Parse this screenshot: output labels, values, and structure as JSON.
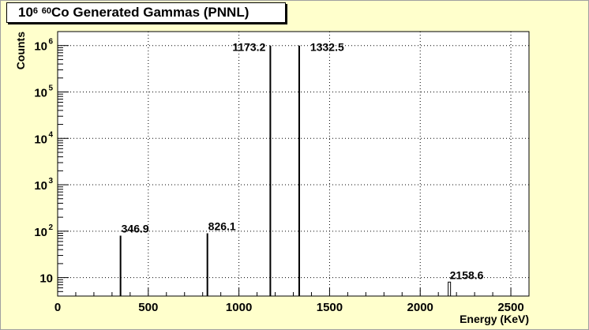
{
  "page": {
    "background": "#ffffcc",
    "plot_background": "#ffffff"
  },
  "title": {
    "base_prefix": "10",
    "exponent": "6",
    "isotope_mass": "60",
    "rest": "Co Generated Gammas (PNNL)"
  },
  "chart_data": {
    "type": "bar",
    "title": "10^6 60Co Generated Gammas (PNNL)",
    "xlabel": "Energy (KeV)",
    "ylabel": "Counts",
    "xlim": [
      0,
      2600
    ],
    "ylim": [
      4,
      2000000
    ],
    "yscale": "log",
    "grid": true,
    "x_ticks": [
      {
        "value": 0,
        "label": "0"
      },
      {
        "value": 500,
        "label": "500"
      },
      {
        "value": 1000,
        "label": "1000"
      },
      {
        "value": 1500,
        "label": "1500"
      },
      {
        "value": 2000,
        "label": "2000"
      },
      {
        "value": 2500,
        "label": "2500"
      }
    ],
    "y_ticks": [
      {
        "value": 10,
        "base": "10",
        "exp": ""
      },
      {
        "value": 100,
        "base": "10",
        "exp": "2"
      },
      {
        "value": 1000,
        "base": "10",
        "exp": "3"
      },
      {
        "value": 10000,
        "base": "10",
        "exp": "4"
      },
      {
        "value": 100000,
        "base": "10",
        "exp": "5"
      },
      {
        "value": 1000000,
        "base": "10",
        "exp": "6"
      }
    ],
    "peaks": [
      {
        "energy": 346.9,
        "counts": 80,
        "label": "346.9",
        "label_side": "right"
      },
      {
        "energy": 826.1,
        "counts": 90,
        "label": "826.1",
        "label_side": "right"
      },
      {
        "energy": 1173.2,
        "counts": 1000000,
        "label": "1173.2",
        "label_side": "left"
      },
      {
        "energy": 1332.5,
        "counts": 1000000,
        "label": "1332.5",
        "label_side": "right"
      },
      {
        "energy": 2158.6,
        "counts": 8,
        "label": "2158.6",
        "label_side": "right",
        "thin": true
      }
    ],
    "line_color": "#000000"
  }
}
